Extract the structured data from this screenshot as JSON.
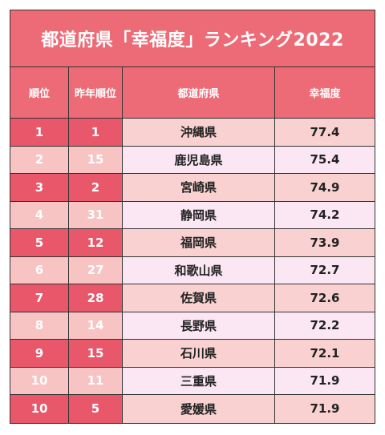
{
  "title": "都道府県「幸福度」ランキング2022",
  "headers": {
    "rank": "順位",
    "prev_rank": "昨年順位",
    "prefecture": "都道府県",
    "happiness": "幸福度"
  },
  "rows": [
    {
      "rank": "1",
      "prev_rank": "1",
      "prefecture": "沖縄県",
      "happiness": "77.4"
    },
    {
      "rank": "2",
      "prev_rank": "15",
      "prefecture": "鹿児島県",
      "happiness": "75.4"
    },
    {
      "rank": "3",
      "prev_rank": "2",
      "prefecture": "宮崎県",
      "happiness": "74.9"
    },
    {
      "rank": "4",
      "prev_rank": "31",
      "prefecture": "静岡県",
      "happiness": "74.2"
    },
    {
      "rank": "5",
      "prev_rank": "12",
      "prefecture": "福岡県",
      "happiness": "73.9"
    },
    {
      "rank": "6",
      "prev_rank": "27",
      "prefecture": "和歌山県",
      "happiness": "72.7"
    },
    {
      "rank": "7",
      "prev_rank": "28",
      "prefecture": "佐賀県",
      "happiness": "72.6"
    },
    {
      "rank": "8",
      "prev_rank": "14",
      "prefecture": "長野県",
      "happiness": "72.2"
    },
    {
      "rank": "9",
      "prev_rank": "15",
      "prefecture": "石川県",
      "happiness": "72.1"
    },
    {
      "rank": "10",
      "prev_rank": "11",
      "prefecture": "三重県",
      "happiness": "71.9"
    },
    {
      "rank": "10",
      "prev_rank": "5",
      "prefecture": "愛媛県",
      "happiness": "71.9"
    }
  ],
  "colors": {
    "header_bg": "#ec6b77",
    "rank_dark": "#e8576a",
    "rank_light": "#f8c3c3",
    "cell_pink": "#f9d1d1",
    "cell_lavender": "#fbe6f4"
  }
}
